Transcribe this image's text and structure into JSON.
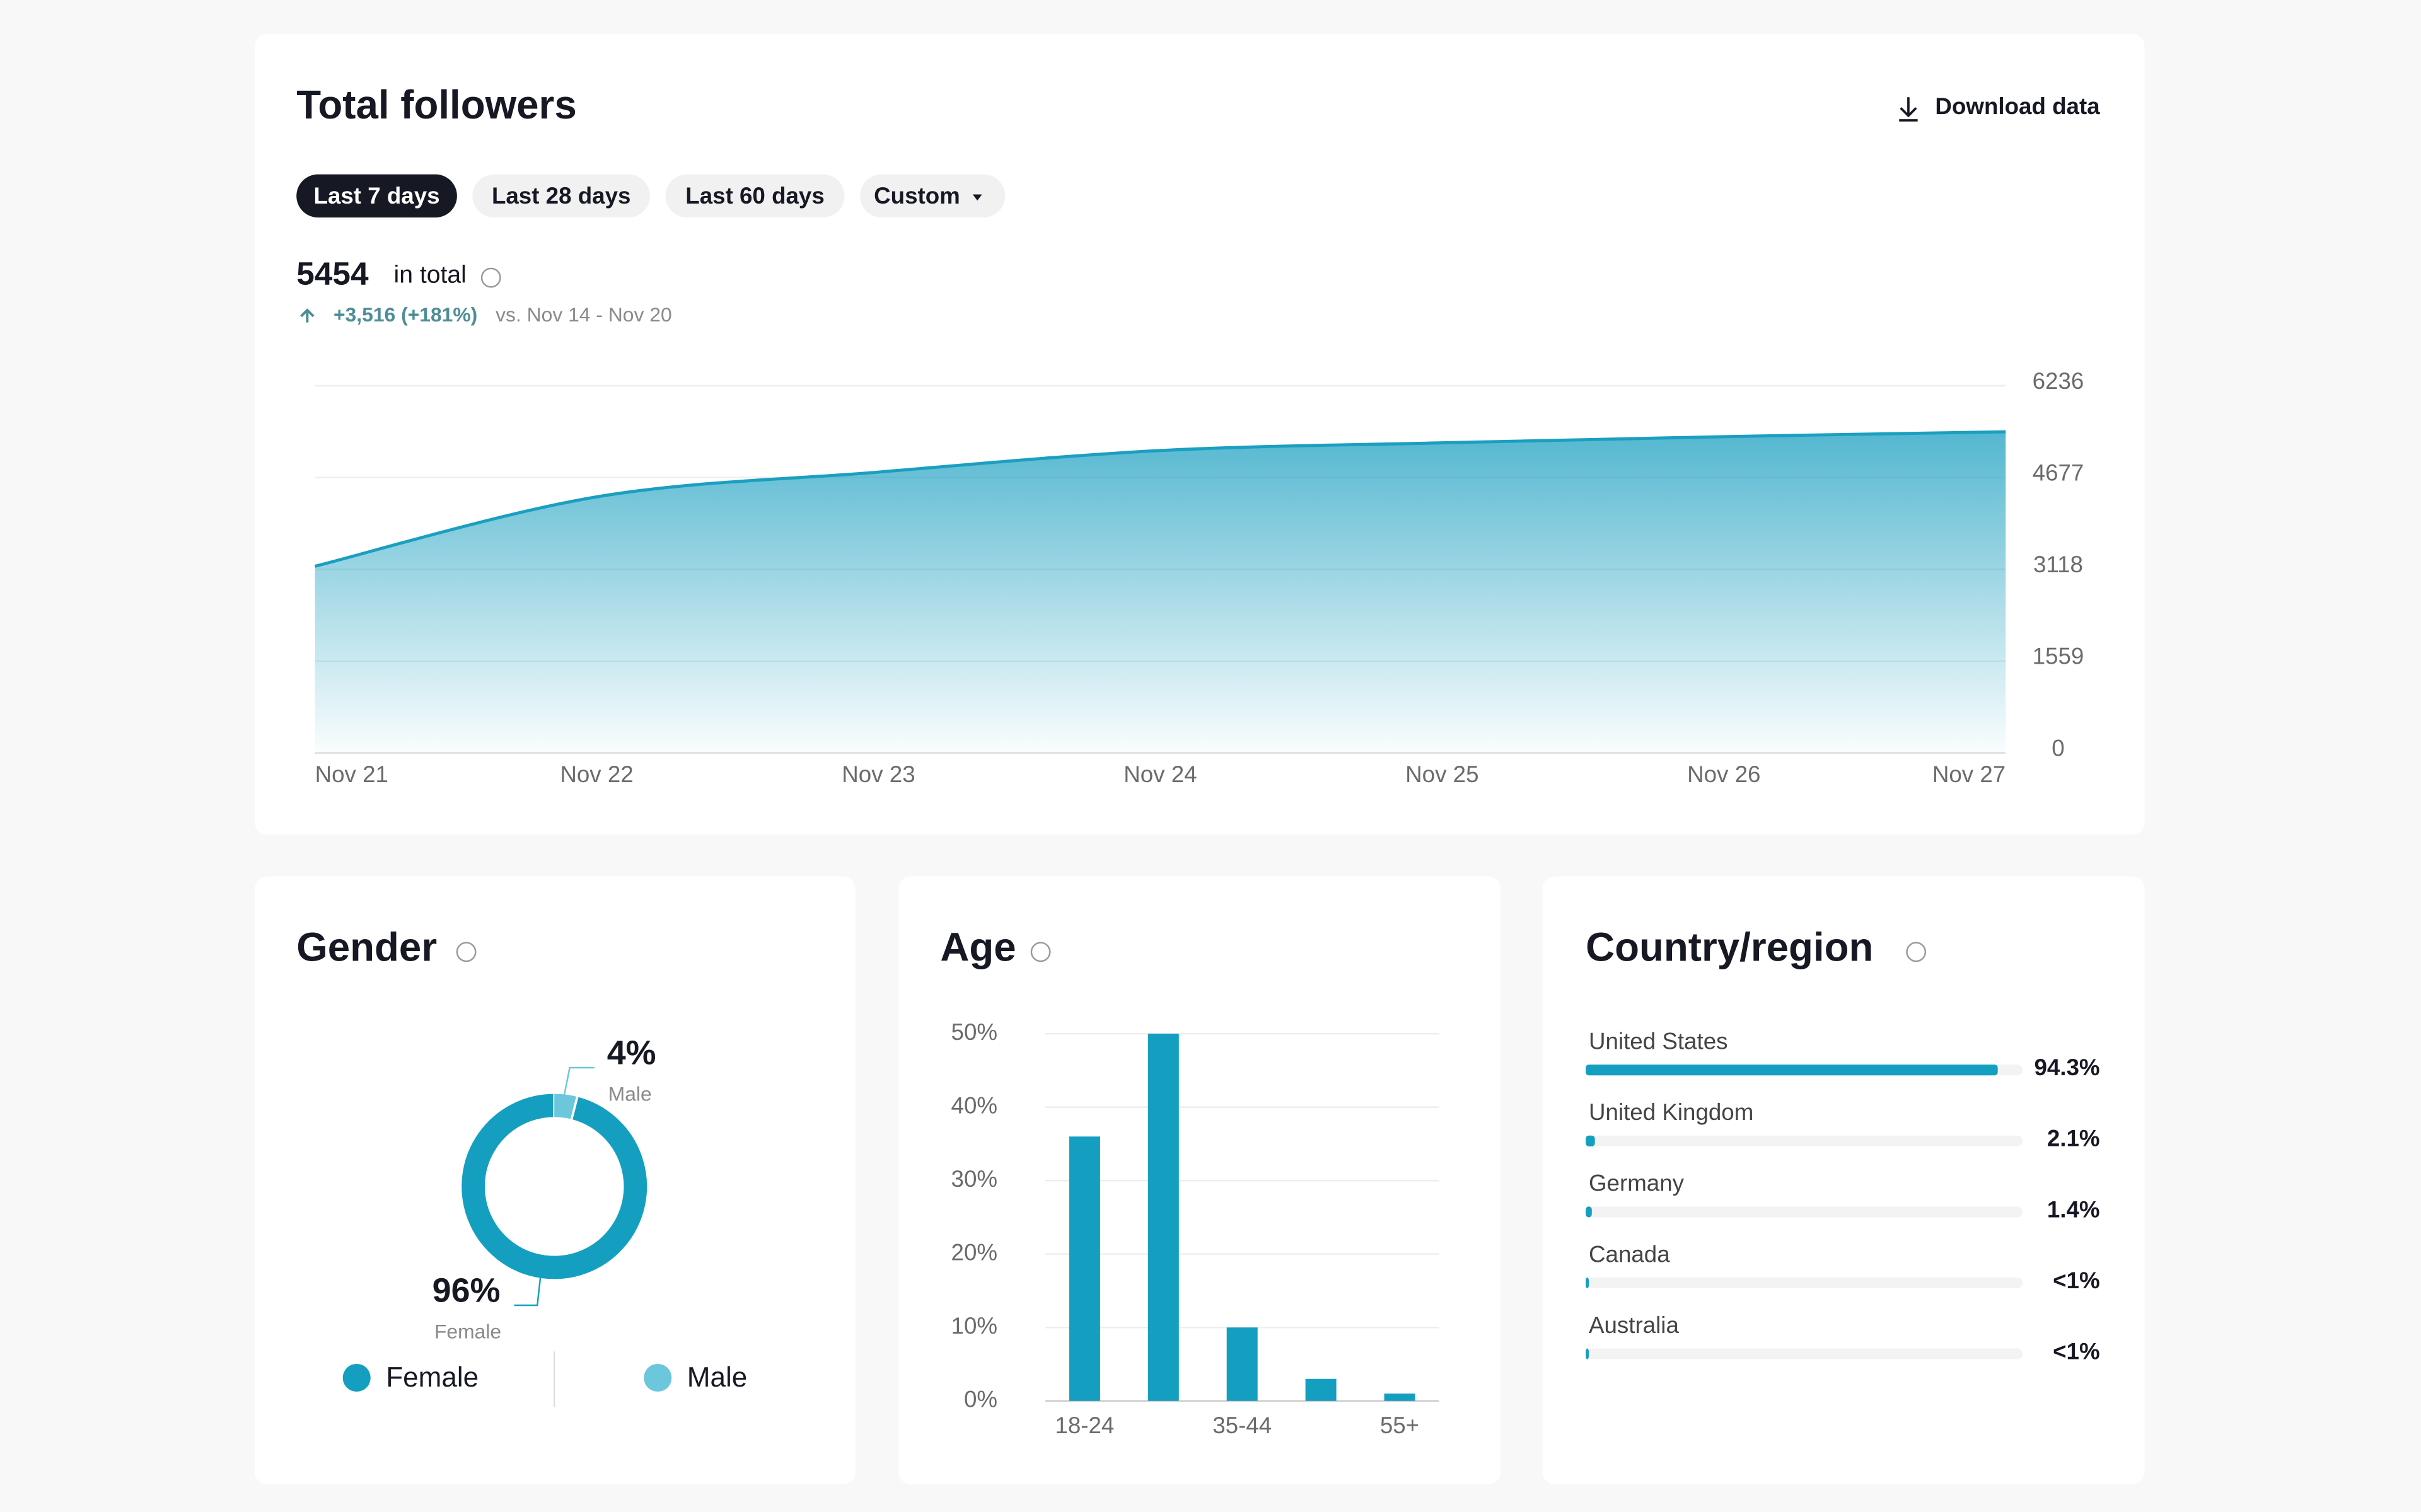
{
  "page": {
    "download": "Download data",
    "filters": [
      {
        "label": "Last 7 days",
        "selected": true
      },
      {
        "label": "Last 28 days",
        "selected": false
      },
      {
        "label": "Last 60 days",
        "selected": false
      },
      {
        "label": "Custom",
        "selected": false
      }
    ],
    "summary": {
      "total": "5454",
      "total_label": "in total",
      "change": "+3,516 (+181%)",
      "comparison": "vs. Nov 14 - Nov 20"
    }
  },
  "chart_data": [
    {
      "type": "area",
      "title": "Total followers",
      "categories": [
        "Nov 21",
        "Nov 22",
        "Nov 23",
        "Nov 24",
        "Nov 25",
        "Nov 26",
        "Nov 27"
      ],
      "values": [
        3170,
        4349,
        4769,
        5135,
        5266,
        5371,
        5454
      ],
      "color": "#1a9fc0",
      "ylim": [
        0,
        6236
      ],
      "yticks": [
        0,
        1559,
        3118,
        4677,
        6236
      ],
      "grid": true
    },
    {
      "type": "pie",
      "title": "Gender",
      "categories": [
        "Female",
        "Male"
      ],
      "values": [
        96,
        4
      ],
      "value_labels": [
        "96%",
        "4%"
      ],
      "colors": [
        "#149fc1",
        "#6cc6dc"
      ]
    },
    {
      "type": "bar",
      "title": "Age",
      "categories": [
        "18-24",
        null,
        "35-44",
        null,
        "55+"
      ],
      "values": [
        36,
        50,
        10,
        3,
        1
      ],
      "color": "#149fc1",
      "ylim": [
        0,
        50
      ],
      "yticks": [
        {
          "value": 0,
          "label": "0%"
        },
        {
          "value": 10,
          "label": "10%"
        },
        {
          "value": 20,
          "label": "20%"
        },
        {
          "value": 30,
          "label": "30%"
        },
        {
          "value": 40,
          "label": "40%"
        },
        {
          "value": 50,
          "label": "50%"
        }
      ],
      "grid": true
    },
    {
      "type": "hbar",
      "title": "Country/region",
      "categories": [
        "United States",
        "United Kingdom",
        "Germany",
        "Canada",
        "Australia"
      ],
      "values": [
        94.3,
        2.1,
        1.4,
        0.5,
        0.5
      ],
      "value_labels": [
        "94.3%",
        "2.1%",
        "1.4%",
        "<1%",
        "<1%"
      ],
      "color": "#149fc1",
      "xlim": [
        0,
        100
      ]
    }
  ]
}
